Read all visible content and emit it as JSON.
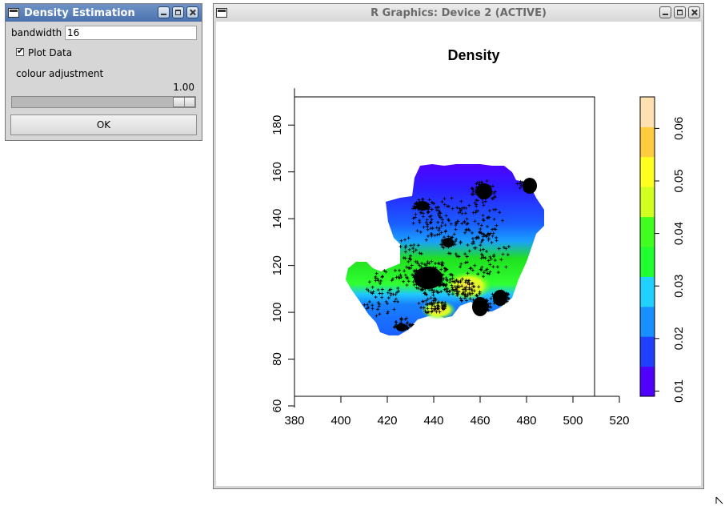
{
  "dialog": {
    "title": "Density Estimation",
    "bandwidth_label": "bandwidth",
    "bandwidth_value": "16",
    "plot_data_label": "Plot Data",
    "plot_data_checked": true,
    "colour_adjustment_label": "colour adjustment",
    "colour_adjustment_value": "1.00",
    "colour_adjustment_fraction": 1.0,
    "ok_label": "OK"
  },
  "graphics_window": {
    "title": "R Graphics: Device 2 (ACTIVE)"
  },
  "chart_data": {
    "type": "heatmap",
    "title": "Density",
    "xlabel": "",
    "ylabel": "",
    "xlim": [
      380,
      520
    ],
    "ylim": [
      60,
      190
    ],
    "x_ticks": [
      "380",
      "400",
      "420",
      "440",
      "460",
      "480",
      "500",
      "520"
    ],
    "y_ticks": [
      "60",
      "80",
      "100",
      "120",
      "140",
      "160",
      "180"
    ],
    "legend": {
      "placement": "right",
      "range": [
        0.009,
        0.066
      ],
      "ticks": [
        "0.01",
        "0.02",
        "0.03",
        "0.04",
        "0.05",
        "0.06"
      ],
      "colors": [
        "#5000ff",
        "#2040ff",
        "#1890ff",
        "#20d0ff",
        "#20ff30",
        "#40ff20",
        "#d0ff20",
        "#ffff20",
        "#ffcc40",
        "#ffe0b0"
      ]
    },
    "points_marker": "+",
    "points_color": "#000000"
  }
}
